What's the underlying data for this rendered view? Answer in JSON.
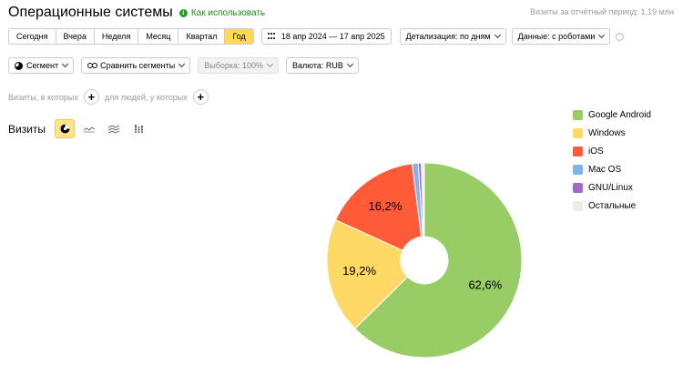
{
  "header": {
    "title": "Операционные системы",
    "how_to_label": "Как использовать",
    "period_total": "Визиты за отчётный период: 1,19 млн"
  },
  "period_tabs": [
    {
      "label": "Сегодня",
      "active": false
    },
    {
      "label": "Вчера",
      "active": false
    },
    {
      "label": "Неделя",
      "active": false
    },
    {
      "label": "Месяц",
      "active": false
    },
    {
      "label": "Квартал",
      "active": false
    },
    {
      "label": "Год",
      "active": true
    }
  ],
  "date_range": "18 апр 2024 — 17 апр 2025",
  "detail_select": "Детализация: по дням",
  "data_select": "Данные: с роботами",
  "toolbar": {
    "segment": "Сегмент",
    "compare": "Сравнить сегменты",
    "sample": "Выборка: 100%",
    "currency": "Валюта: RUB"
  },
  "filters": {
    "visits_where": "Визиты, в которых",
    "people_where": "для людей, у которых"
  },
  "metric_label": "Визиты",
  "chart_data": {
    "type": "pie",
    "slices": [
      {
        "name": "Google Android",
        "value": 62.6,
        "label": "62,6%",
        "color": "#98cc64"
      },
      {
        "name": "Windows",
        "value": 19.2,
        "label": "19,2%",
        "color": "#ffd966"
      },
      {
        "name": "iOS",
        "value": 16.2,
        "label": "16,2%",
        "color": "#ff5b38"
      },
      {
        "name": "Mac OS",
        "value": 1.0,
        "label": "",
        "color": "#7fb3ea"
      },
      {
        "name": "GNU/Linux",
        "value": 0.5,
        "label": "",
        "color": "#a16ac8"
      },
      {
        "name": "Остальные",
        "value": 0.5,
        "label": "",
        "color": "#ebebeb"
      }
    ]
  }
}
